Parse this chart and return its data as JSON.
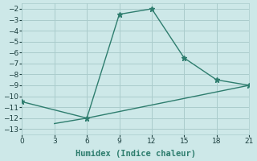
{
  "line1_x": [
    0,
    6,
    9,
    12,
    15,
    18,
    21
  ],
  "line1_y": [
    -10.5,
    -12.0,
    -2.5,
    -2.0,
    -6.5,
    -8.5,
    -9.0
  ],
  "line2_x": [
    3,
    6,
    21
  ],
  "line2_y": [
    -12.5,
    -12.0,
    -9.0
  ],
  "color": "#2e7d6e",
  "bg_color": "#cde8e8",
  "grid_color": "#aacccc",
  "xlabel": "Humidex (Indice chaleur)",
  "xlim": [
    0,
    21
  ],
  "ylim": [
    -13.5,
    -1.5
  ],
  "xticks": [
    0,
    3,
    6,
    9,
    12,
    15,
    18,
    21
  ],
  "yticks": [
    -2,
    -3,
    -4,
    -5,
    -6,
    -7,
    -8,
    -9,
    -10,
    -11,
    -12,
    -13
  ],
  "tick_fontsize": 6.5,
  "xlabel_fontsize": 7.5
}
